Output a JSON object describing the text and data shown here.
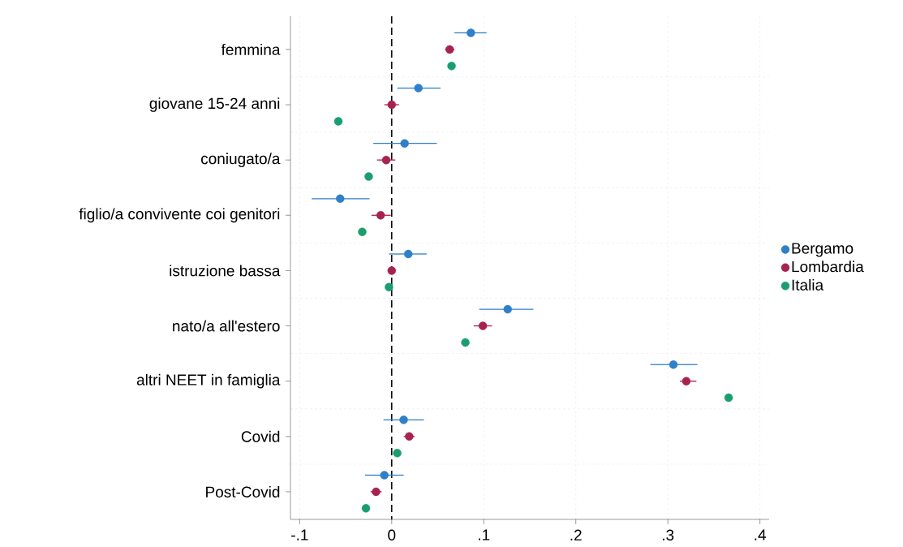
{
  "chart_data": {
    "type": "scatter",
    "orientation": "horizontal",
    "categories": [
      "femmina",
      "giovane 15-24 anni",
      "coniugato/a",
      "figlio/a convivente coi genitori",
      "istruzione bassa",
      "nato/a all'estero",
      "altri NEET in famiglia",
      "Covid",
      "Post-Covid"
    ],
    "series": [
      {
        "name": "Bergamo",
        "color": "#2f7fc9",
        "values": [
          0.086,
          0.029,
          0.014,
          -0.056,
          0.018,
          0.126,
          0.306,
          0.013,
          -0.008
        ],
        "errors": [
          [
            0.068,
            0.103
          ],
          [
            0.006,
            0.053
          ],
          [
            -0.02,
            0.049
          ],
          [
            -0.087,
            -0.024
          ],
          [
            -0.003,
            0.038
          ],
          [
            0.095,
            0.154
          ],
          [
            0.281,
            0.332
          ],
          [
            -0.009,
            0.035
          ],
          [
            -0.029,
            0.013
          ]
        ]
      },
      {
        "name": "Lombardia",
        "color": "#a8224e",
        "values": [
          0.063,
          0.0,
          -0.006,
          -0.012,
          0.0,
          0.099,
          0.32,
          0.019,
          -0.017
        ],
        "errors": [
          [
            0.058,
            0.068
          ],
          [
            -0.008,
            0.008
          ],
          [
            -0.016,
            0.004
          ],
          [
            -0.022,
            -0.001
          ],
          [
            -0.004,
            0.004
          ],
          [
            0.089,
            0.109
          ],
          [
            0.313,
            0.331
          ],
          [
            0.013,
            0.025
          ],
          [
            -0.023,
            -0.011
          ]
        ]
      },
      {
        "name": "Italia",
        "color": "#1a9e6e",
        "values": [
          0.065,
          -0.058,
          -0.025,
          -0.032,
          -0.003,
          0.08,
          0.366,
          0.006,
          -0.028
        ]
      }
    ],
    "xlim": [
      -0.11,
      0.41
    ],
    "xticks": [
      {
        "value": -0.1,
        "label": "-.1"
      },
      {
        "value": 0,
        "label": "0"
      },
      {
        "value": 0.1,
        "label": ".1"
      },
      {
        "value": 0.2,
        "label": ".2"
      },
      {
        "value": 0.3,
        "label": ".3"
      },
      {
        "value": 0.4,
        "label": ".4"
      }
    ],
    "ref_lines": [
      {
        "axis": "x",
        "value": 0,
        "color": "#000000",
        "line_style": "dashed"
      }
    ],
    "grid": true,
    "legend": "right",
    "marker": "circle"
  }
}
